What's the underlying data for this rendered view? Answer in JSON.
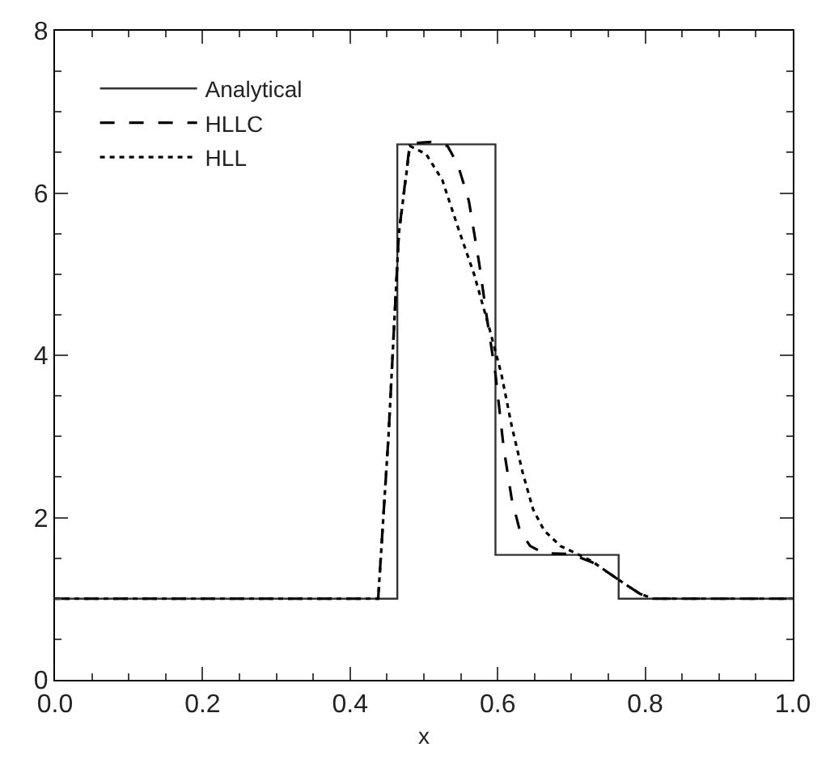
{
  "chart_data": {
    "type": "line",
    "xlabel": "x",
    "xlim": [
      0,
      1
    ],
    "ylim": [
      0,
      8
    ],
    "xticks": [
      {
        "value": 0,
        "label": "0.0"
      },
      {
        "value": 0.05,
        "label": null
      },
      {
        "value": 0.1,
        "label": null
      },
      {
        "value": 0.15,
        "label": null
      },
      {
        "value": 0.2,
        "label": "0.2"
      },
      {
        "value": 0.25,
        "label": null
      },
      {
        "value": 0.3,
        "label": null
      },
      {
        "value": 0.35,
        "label": null
      },
      {
        "value": 0.4,
        "label": "0.4"
      },
      {
        "value": 0.45,
        "label": null
      },
      {
        "value": 0.5,
        "label": null
      },
      {
        "value": 0.55,
        "label": null
      },
      {
        "value": 0.6,
        "label": "0.6"
      },
      {
        "value": 0.65,
        "label": null
      },
      {
        "value": 0.7,
        "label": null
      },
      {
        "value": 0.75,
        "label": null
      },
      {
        "value": 0.8,
        "label": "0.8"
      },
      {
        "value": 0.85,
        "label": null
      },
      {
        "value": 0.9,
        "label": null
      },
      {
        "value": 0.95,
        "label": null
      },
      {
        "value": 1,
        "label": "1.0"
      }
    ],
    "yticks": [
      0,
      {
        "value": 0.5,
        "label": null
      },
      {
        "value": 1,
        "label": null
      },
      {
        "value": 1.5,
        "label": null
      },
      2,
      {
        "value": 2.5,
        "label": null
      },
      {
        "value": 3,
        "label": null
      },
      {
        "value": 3.5,
        "label": null
      },
      4,
      {
        "value": 4.5,
        "label": null
      },
      {
        "value": 5,
        "label": null
      },
      {
        "value": 5.5,
        "label": null
      },
      6,
      {
        "value": 6.5,
        "label": null
      },
      {
        "value": 7,
        "label": null
      },
      {
        "value": 7.5,
        "label": null
      },
      8
    ],
    "legend": "top left",
    "marker": "none",
    "series": [
      {
        "name": "Analytical",
        "type": "step",
        "color": "#333333",
        "line_style": "solid",
        "x": [
          0,
          0.464,
          0.597,
          0.764,
          1.0
        ],
        "values": [
          1,
          6.6,
          1.54,
          1,
          1
        ]
      },
      {
        "name": "HLLC",
        "color": "#000000",
        "line_style": "dashed",
        "x": [
          0,
          0.438,
          0.452,
          0.466,
          0.481,
          0.51,
          0.532,
          0.546,
          0.561,
          0.575,
          0.586,
          0.597,
          0.608,
          0.619,
          0.63,
          0.644,
          0.663,
          0.699,
          0.728,
          0.75,
          0.771,
          0.793,
          0.811,
          1.0
        ],
        "values": [
          1,
          1,
          3.0,
          5.5,
          6.61,
          6.63,
          6.58,
          6.35,
          5.9,
          5.13,
          4.42,
          3.77,
          2.87,
          2.23,
          1.84,
          1.65,
          1.56,
          1.55,
          1.45,
          1.32,
          1.19,
          1.06,
          1,
          1
        ]
      },
      {
        "name": "HLL",
        "color": "#000000",
        "line_style": "dotted",
        "x": [
          0,
          0.438,
          0.452,
          0.466,
          0.481,
          0.503,
          0.525,
          0.546,
          0.568,
          0.59,
          0.605,
          0.619,
          0.634,
          0.648,
          0.663,
          0.685,
          0.706,
          0.728,
          0.75,
          0.771,
          0.793,
          0.811,
          1.0
        ],
        "values": [
          1,
          1,
          3.0,
          5.5,
          6.58,
          6.48,
          6.16,
          5.58,
          5.0,
          4.29,
          3.77,
          3.13,
          2.55,
          2.1,
          1.84,
          1.65,
          1.56,
          1.46,
          1.32,
          1.19,
          1.06,
          1,
          1
        ]
      }
    ]
  }
}
